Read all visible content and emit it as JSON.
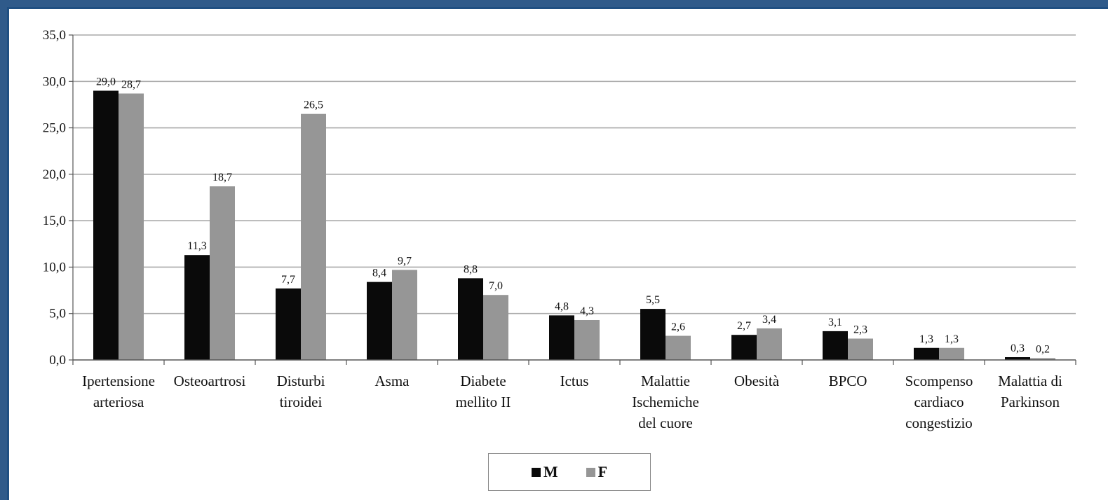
{
  "colors": {
    "M": "#0a0a0a",
    "F": "#969696",
    "grid": "#a9a9a9",
    "frame": "#1f4f82"
  },
  "chart_data": {
    "type": "bar",
    "title": "",
    "xlabel": "",
    "ylabel": "",
    "ylim": [
      0,
      35
    ],
    "yticks": [
      "0,0",
      "5,0",
      "10,0",
      "15,0",
      "20,0",
      "25,0",
      "30,0",
      "35,0"
    ],
    "grid": true,
    "legend_position": "bottom",
    "categories": [
      [
        "Ipertensione",
        "arteriosa"
      ],
      [
        "Osteoartrosi"
      ],
      [
        "Disturbi",
        "tiroidei"
      ],
      [
        "Asma"
      ],
      [
        "Diabete",
        "mellito II"
      ],
      [
        "Ictus"
      ],
      [
        "Malattie",
        "Ischemiche",
        "del cuore"
      ],
      [
        "Obesità"
      ],
      [
        "BPCO"
      ],
      [
        "Scompenso",
        "cardiaco",
        "congestizio"
      ],
      [
        "Malattia di",
        "Parkinson"
      ]
    ],
    "series": [
      {
        "name": "M",
        "values": [
          29.0,
          11.3,
          7.7,
          8.4,
          8.8,
          4.8,
          5.5,
          2.7,
          3.1,
          1.3,
          0.3
        ],
        "labels": [
          "29,0",
          "11,3",
          "7,7",
          "8,4",
          "8,8",
          "4,8",
          "5,5",
          "2,7",
          "3,1",
          "1,3",
          "0,3"
        ]
      },
      {
        "name": "F",
        "values": [
          28.7,
          18.7,
          26.5,
          9.7,
          7.0,
          4.3,
          2.6,
          3.4,
          2.3,
          1.3,
          0.2
        ],
        "labels": [
          "28,7",
          "18,7",
          "26,5",
          "9,7",
          "7,0",
          "4,3",
          "2,6",
          "3,4",
          "2,3",
          "1,3",
          "0,2"
        ]
      }
    ]
  },
  "legend": {
    "m_label": "M",
    "f_label": "F"
  }
}
